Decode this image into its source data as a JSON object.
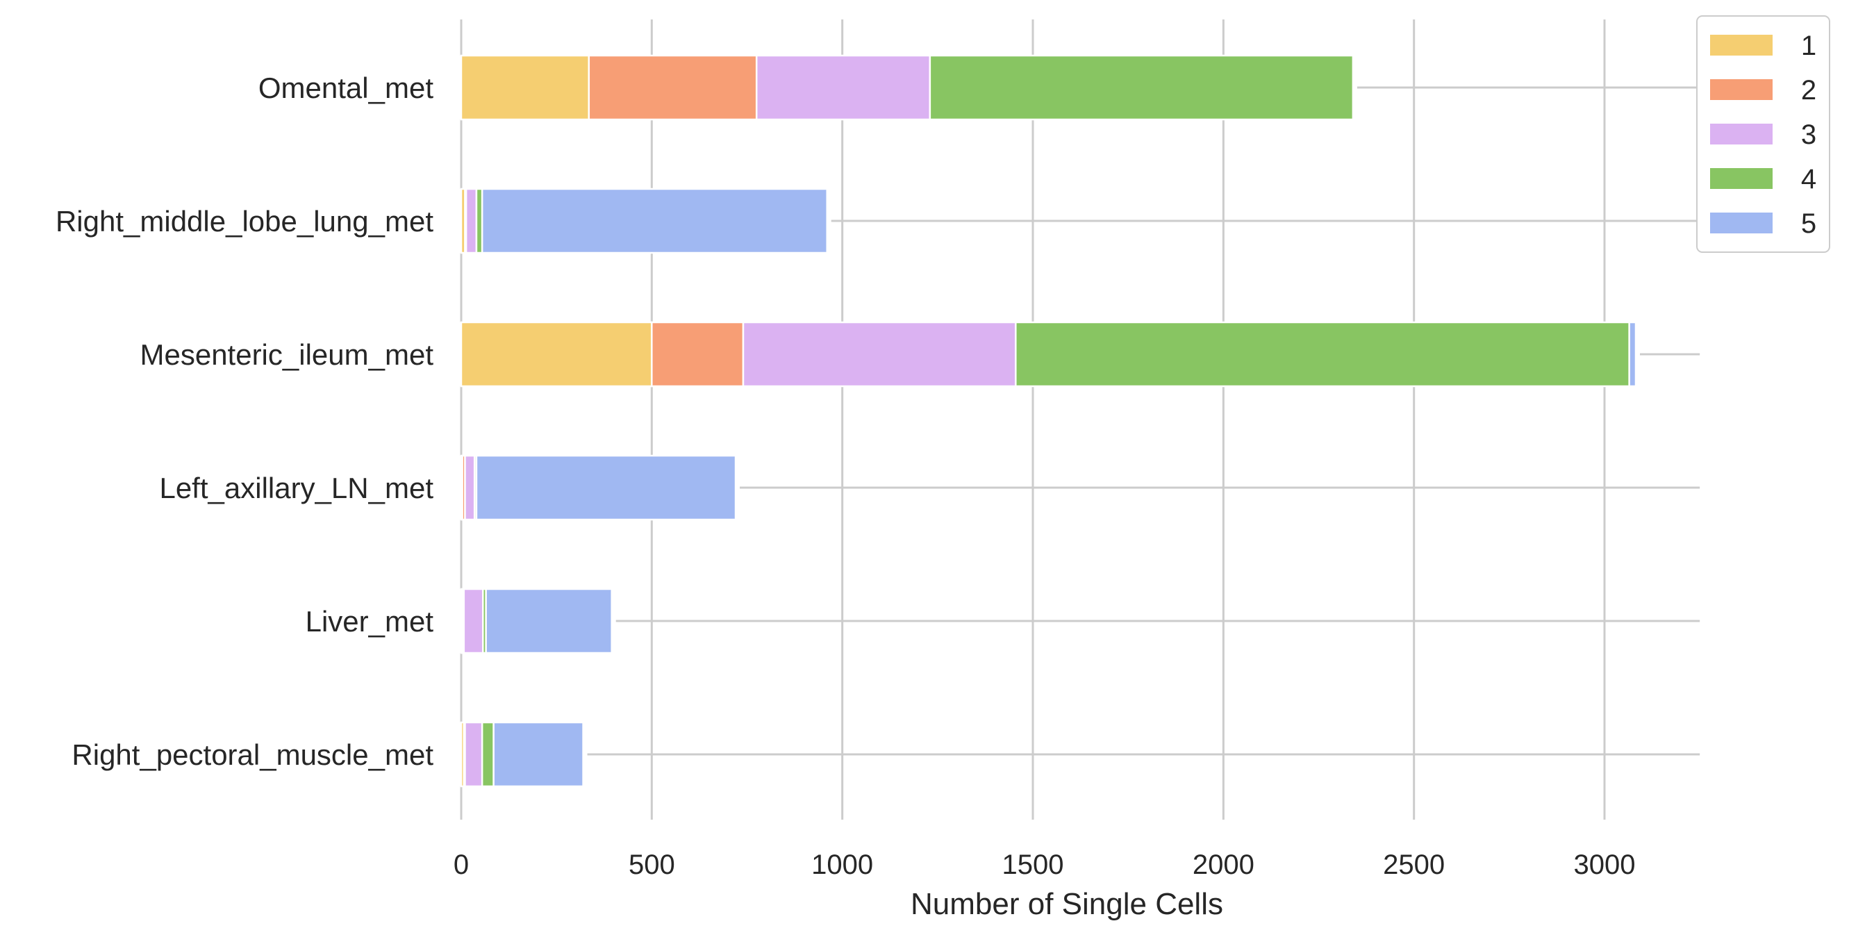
{
  "chart_data": {
    "type": "bar",
    "orientation": "horizontal",
    "stacked": true,
    "title": "",
    "xlabel": "Number of Single Cells",
    "ylabel": "",
    "xlim": [
      0,
      3250
    ],
    "xticks": [
      0,
      500,
      1000,
      1500,
      2000,
      2500,
      3000
    ],
    "grid": true,
    "legend_position": "top-right, outside",
    "categories": [
      "Omental_met",
      "Right_middle_lobe_lung_met",
      "Mesenteric_ileum_met",
      "Left_axillary_LN_met",
      "Liver_met",
      "Right_pectoral_muscle_met"
    ],
    "series": [
      {
        "name": "1",
        "color": "#f5ce71",
        "values": [
          335,
          10,
          500,
          3,
          4,
          7
        ]
      },
      {
        "name": "2",
        "color": "#f79e75",
        "values": [
          440,
          3,
          240,
          7,
          3,
          3
        ]
      },
      {
        "name": "3",
        "color": "#dbb2f2",
        "values": [
          455,
          27,
          715,
          25,
          50,
          45
        ]
      },
      {
        "name": "4",
        "color": "#88c562",
        "values": [
          1110,
          15,
          1610,
          5,
          8,
          30
        ]
      },
      {
        "name": "5",
        "color": "#a0b8f2",
        "values": [
          0,
          905,
          17,
          680,
          330,
          235
        ]
      }
    ]
  }
}
